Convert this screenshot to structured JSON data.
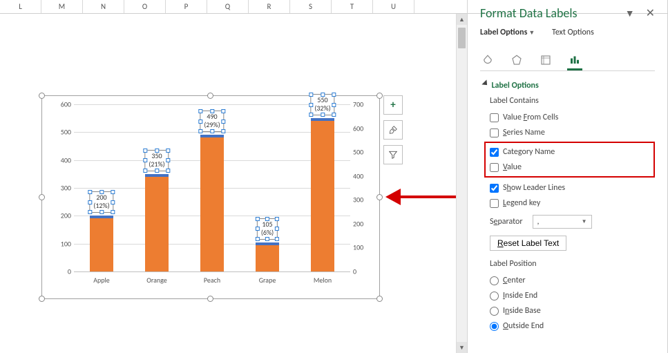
{
  "sheet": {
    "columns": [
      "L",
      "M",
      "N",
      "O",
      "P",
      "Q",
      "R",
      "S",
      "T",
      "U"
    ]
  },
  "chart": {
    "type": "bar",
    "categories": [
      "Apple",
      "Orange",
      "Peach",
      "Grape",
      "Melon"
    ],
    "values": [
      200,
      350,
      490,
      105,
      550
    ],
    "percents": [
      "(12%)",
      "(21%)",
      "(29%)",
      "(6%)",
      "(32%)"
    ],
    "bar_color": "#ed7d31",
    "cap_color": "#4472c4",
    "grid_color": "#d9d9d9",
    "axis_text_color": "#595959",
    "background_color": "#ffffff",
    "ylim": [
      0,
      600
    ],
    "ytick_step": 100,
    "y2lim": [
      0,
      700
    ],
    "y2tick_step": 100,
    "label_fontsize": 10
  },
  "chart_buttons": {
    "plus": "+",
    "brush": "brush",
    "filter": "filter"
  },
  "pane": {
    "title": "Format Data Labels",
    "tabs": {
      "label_options": "Label Options",
      "text_options": "Text Options"
    },
    "section_label_options": "Label Options",
    "label_contains": "Label Contains",
    "opts": {
      "value_from_cells": "Value From Cells",
      "series_name": "Series Name",
      "category_name": "Category Name",
      "value": "Value",
      "show_leader_lines": "Show Leader Lines",
      "legend_key": "Legend key"
    },
    "separator_label": "Separator",
    "separator_value": ",",
    "reset_label": "Reset Label Text",
    "label_position": "Label Position",
    "positions": {
      "center": "Center",
      "inside_end": "Inside End",
      "inside_base": "Inside Base",
      "outside_end": "Outside End"
    },
    "checked": {
      "category_name": true,
      "value": false,
      "show_leader_lines": true
    },
    "position_selected": "outside_end"
  }
}
